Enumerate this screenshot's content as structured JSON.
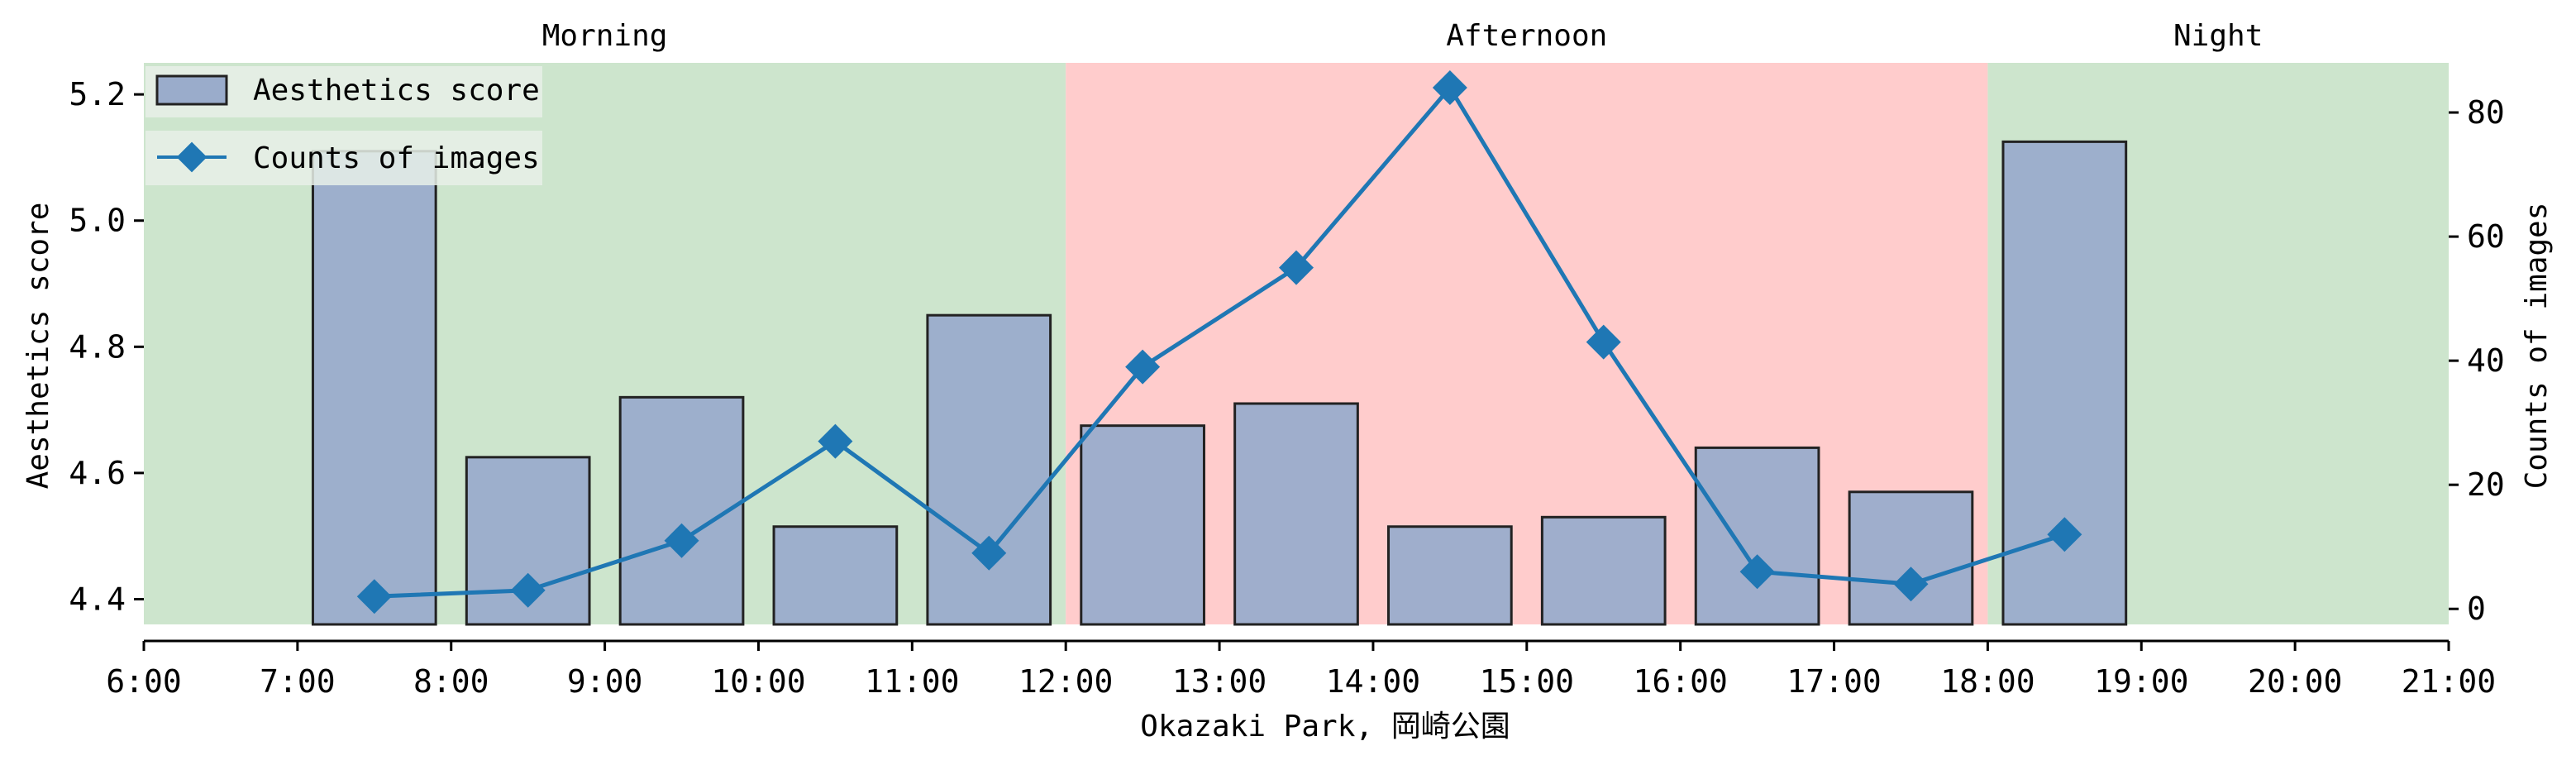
{
  "chart_data": {
    "type": "bar+line",
    "xlabel": "Okazaki Park, 岡崎公園",
    "x_ticks": [
      "6:00",
      "7:00",
      "8:00",
      "9:00",
      "10:00",
      "11:00",
      "12:00",
      "13:00",
      "14:00",
      "15:00",
      "16:00",
      "17:00",
      "18:00",
      "19:00",
      "20:00",
      "21:00"
    ],
    "xlim": [
      6,
      21
    ],
    "y_left": {
      "label": "Aesthetics score",
      "lim": [
        4.36,
        5.25
      ],
      "ticks": [
        "4.4",
        "4.6",
        "4.8",
        "5.0",
        "5.2"
      ]
    },
    "y_right": {
      "label": "Counts of images",
      "lim": [
        -2.5,
        88
      ],
      "ticks": [
        "0",
        "20",
        "40",
        "60",
        "80"
      ]
    },
    "bands": [
      {
        "label": "Morning",
        "from": 6,
        "to": 12,
        "color": "#cde5cd"
      },
      {
        "label": "Afternoon",
        "from": 12,
        "to": 18,
        "color": "#ffcccc"
      },
      {
        "label": "Night",
        "from": 18,
        "to": 21,
        "color": "#cde5cd"
      }
    ],
    "x_hours": [
      7.5,
      8.5,
      9.5,
      10.5,
      11.5,
      12.5,
      13.5,
      14.5,
      15.5,
      16.5,
      17.5,
      18.5
    ],
    "series": [
      {
        "name": "Aesthetics score",
        "type": "bar",
        "axis": "left",
        "color": "#9aaccb",
        "values": [
          5.11,
          4.625,
          4.72,
          4.515,
          4.85,
          4.675,
          4.71,
          4.515,
          4.53,
          4.64,
          4.57,
          5.125
        ]
      },
      {
        "name": "Counts of images",
        "type": "line",
        "axis": "right",
        "color": "#1f77b4",
        "marker": "diamond",
        "values": [
          2,
          3,
          11,
          27,
          9,
          39,
          55,
          84,
          43,
          6,
          4,
          12
        ]
      }
    ],
    "legend": "top-left",
    "grid": false
  }
}
